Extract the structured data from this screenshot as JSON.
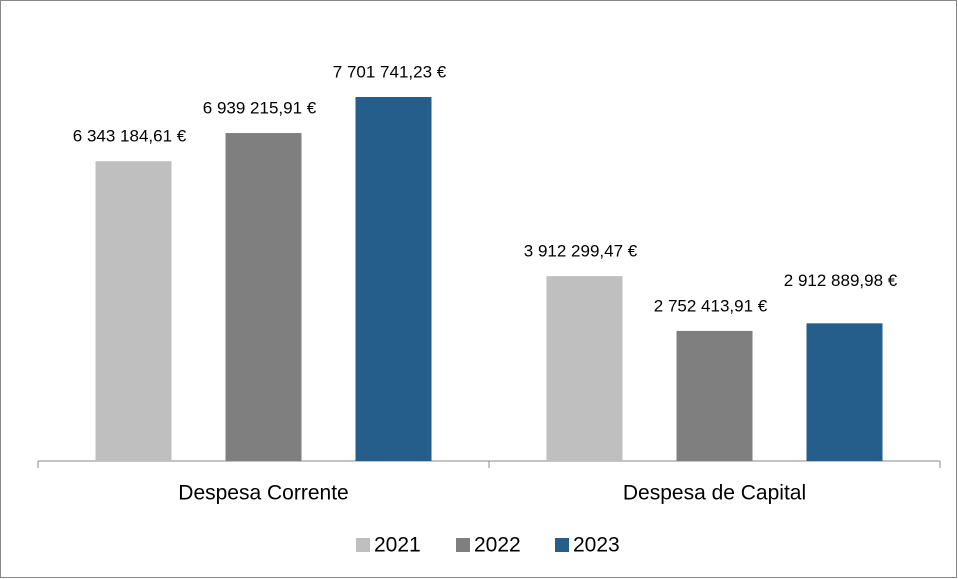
{
  "chart_data": {
    "type": "bar",
    "categories": [
      "Despesa Corrente",
      "Despesa de Capital"
    ],
    "series": [
      {
        "name": "2021",
        "color": "#bfbfbf",
        "values": [
          6343184.61,
          3912299.47
        ],
        "value_labels": [
          "6 343 184,61 €",
          "3 912 299,47 €"
        ]
      },
      {
        "name": "2022",
        "color": "#7f7f7f",
        "values": [
          6939215.91,
          2752413.91
        ],
        "value_labels": [
          "6 939 215,91 €",
          "2 752 413,91 €"
        ]
      },
      {
        "name": "2023",
        "color": "#255e8b",
        "values": [
          7701741.23,
          2912889.98
        ],
        "value_labels": [
          "7 701 741,23 €",
          "2 912 889,98 €"
        ]
      }
    ],
    "legend": "bottom"
  }
}
